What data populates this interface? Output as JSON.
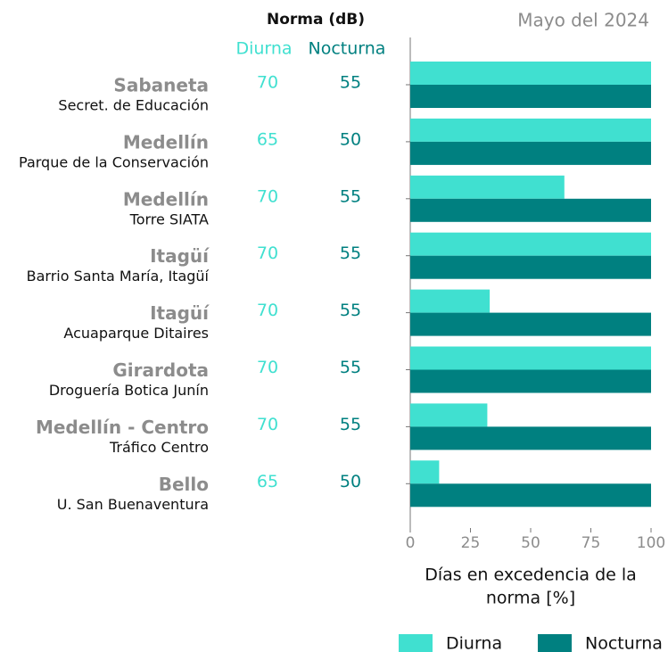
{
  "chart_data": {
    "type": "bar",
    "orientation": "horizontal",
    "title": "Mayo del 2024",
    "categories": [
      "Sabaneta",
      "Medellín",
      "Medellín",
      "Itagüí",
      "Itagüí",
      "Girardota",
      "Medellín - Centro",
      "Bello"
    ],
    "stations": [
      "Secret. de Educación",
      "Parque de la Conservación",
      "Torre SIATA",
      "Barrio Santa María, Itagüí",
      "Acuaparque Ditaires",
      "Droguería Botica Junín",
      "Tráfico Centro",
      "U. San Buenaventura"
    ],
    "norms": {
      "title": "Norma (dB)",
      "columns": [
        {
          "name": "Diurna",
          "color": "#40e0d0",
          "values": [
            70,
            65,
            70,
            70,
            70,
            70,
            70,
            65
          ]
        },
        {
          "name": "Nocturna",
          "color": "#008080",
          "values": [
            55,
            50,
            55,
            55,
            55,
            55,
            55,
            50
          ]
        }
      ]
    },
    "series": [
      {
        "name": "Diurna",
        "color": "#40e0d0",
        "values": [
          100,
          100,
          64,
          100,
          33,
          100,
          32,
          12
        ]
      },
      {
        "name": "Nocturna",
        "color": "#008080",
        "values": [
          100,
          100,
          100,
          100,
          100,
          100,
          100,
          100
        ]
      }
    ],
    "xlabel": [
      "Días en excedencia de la",
      "norma [%]"
    ],
    "xlim": [
      0,
      100
    ],
    "xticks": [
      0,
      25,
      50,
      75,
      100
    ],
    "legend": "bottom"
  }
}
